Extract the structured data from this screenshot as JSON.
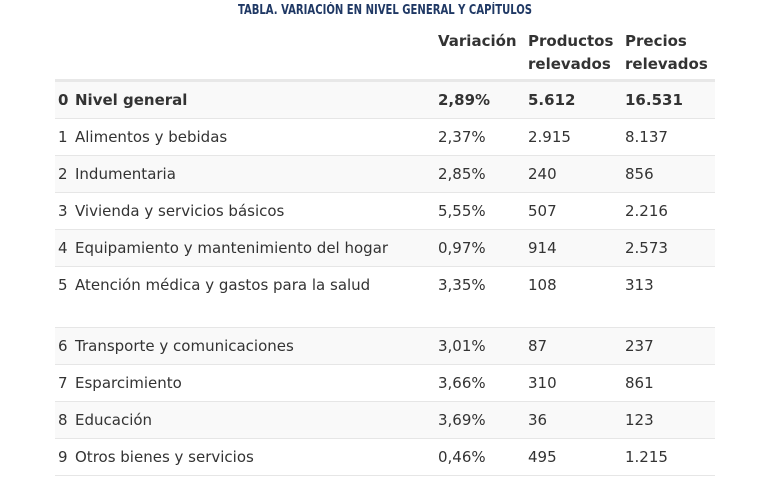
{
  "title": "TABLA. VARIACIÓN EN NIVEL GENERAL Y CAPÍTULOS",
  "headers": {
    "variacion": "Variación",
    "productos": "Productos relevados",
    "precios": "Precios relevados"
  },
  "rows": [
    {
      "num": "0",
      "name": "Nivel general",
      "variacion": "2,89%",
      "productos": "5.612",
      "precios": "16.531",
      "bold": true
    },
    {
      "num": "1",
      "name": "Alimentos y bebidas",
      "variacion": "2,37%",
      "productos": "2.915",
      "precios": "8.137"
    },
    {
      "num": "2",
      "name": "Indumentaria",
      "variacion": "2,85%",
      "productos": "240",
      "precios": "856"
    },
    {
      "num": "3",
      "name": "Vivienda y servicios básicos",
      "variacion": "5,55%",
      "productos": "507",
      "precios": "2.216"
    },
    {
      "num": "4",
      "name": "Equipamiento y mantenimiento del hogar",
      "variacion": "0,97%",
      "productos": "914",
      "precios": "2.573"
    },
    {
      "num": "5",
      "name": "Atención médica y gastos para la salud",
      "variacion": "3,35%",
      "productos": "108",
      "precios": "313"
    },
    {
      "num": "6",
      "name": "Transporte y comunicaciones",
      "variacion": "3,01%",
      "productos": "87",
      "precios": "237"
    },
    {
      "num": "7",
      "name": "Esparcimiento",
      "variacion": "3,66%",
      "productos": "310",
      "precios": "861"
    },
    {
      "num": "8",
      "name": "Educación",
      "variacion": "3,69%",
      "productos": "36",
      "precios": "123"
    },
    {
      "num": "9",
      "name": "Otros bienes y servicios",
      "variacion": "0,46%",
      "productos": "495",
      "precios": "1.215"
    }
  ]
}
